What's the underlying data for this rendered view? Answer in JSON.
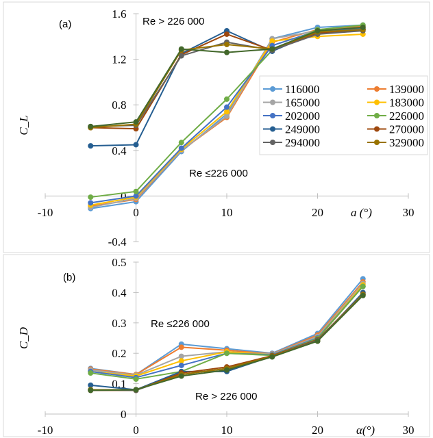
{
  "chart_data": [
    {
      "type": "line",
      "panel": "(a)",
      "xlabel": "a (°)",
      "ylabel": "C_L",
      "xlim": [
        -10,
        30
      ],
      "ylim": [
        -0.4,
        1.6
      ],
      "x_ticks": [
        -10,
        0,
        10,
        20,
        30
      ],
      "y_ticks": [
        -0.4,
        0,
        0.4,
        0.8,
        1.2,
        1.6
      ],
      "y_tick_labels": [
        "-0.4",
        "0",
        "0.4",
        "0.8",
        "1.2",
        "1.6"
      ],
      "annotations": [
        "Re > 226 000",
        "Re ≤226 000"
      ],
      "legend": "inside, right",
      "grid": false,
      "x": [
        -5,
        0,
        5,
        10,
        15,
        20,
        25
      ],
      "series": [
        {
          "name": "116000",
          "color": "#5b9bd5",
          "values": [
            -0.11,
            -0.05,
            0.39,
            0.72,
            1.38,
            1.48,
            1.5
          ]
        },
        {
          "name": "139000",
          "color": "#ed7d31",
          "values": [
            -0.09,
            -0.03,
            0.4,
            0.69,
            1.35,
            1.46,
            1.49
          ]
        },
        {
          "name": "165000",
          "color": "#a5a5a5",
          "values": [
            -0.1,
            -0.02,
            0.4,
            0.7,
            1.38,
            1.45,
            1.48
          ]
        },
        {
          "name": "183000",
          "color": "#ffc000",
          "values": [
            -0.08,
            -0.01,
            0.41,
            0.74,
            1.36,
            1.4,
            1.42
          ]
        },
        {
          "name": "202000",
          "color": "#4472c4",
          "values": [
            -0.06,
            0.0,
            0.42,
            0.78,
            1.32,
            1.45,
            1.47
          ]
        },
        {
          "name": "226000",
          "color": "#70ad47",
          "values": [
            -0.01,
            0.04,
            0.47,
            0.85,
            1.28,
            1.46,
            1.5
          ]
        },
        {
          "name": "249000",
          "color": "#255e91",
          "values": [
            0.44,
            0.45,
            1.25,
            1.45,
            1.27,
            1.44,
            1.46
          ]
        },
        {
          "name": "270000",
          "color": "#9e480e",
          "values": [
            0.6,
            0.59,
            1.24,
            1.42,
            1.28,
            1.43,
            1.46
          ]
        },
        {
          "name": "294000",
          "color": "#636363",
          "values": [
            0.61,
            0.62,
            1.23,
            1.35,
            1.28,
            1.42,
            1.45
          ]
        },
        {
          "name": "329000",
          "color": "#997300",
          "values": [
            0.6,
            0.63,
            1.28,
            1.33,
            1.29,
            1.44,
            1.46
          ]
        },
        {
          "name": "",
          "color": "#43682b",
          "values": [
            0.61,
            0.65,
            1.29,
            1.26,
            1.29,
            1.45,
            1.48
          ]
        }
      ]
    },
    {
      "type": "line",
      "panel": "(b)",
      "xlabel": "α(°)",
      "ylabel": "C_D",
      "xlim": [
        -10,
        30
      ],
      "ylim": [
        0,
        0.5
      ],
      "x_ticks": [
        -10,
        0,
        10,
        20,
        30
      ],
      "y_ticks": [
        0,
        0.1,
        0.2,
        0.3,
        0.4,
        0.5
      ],
      "y_tick_labels": [
        "0",
        "0.1",
        "0.2",
        "0.3",
        "0.4",
        "0.5"
      ],
      "annotations": [
        "Re ≤226 000",
        "Re > 226 000"
      ],
      "grid": false,
      "x": [
        -5,
        0,
        5,
        10,
        15,
        20,
        25
      ],
      "series": [
        {
          "name": "116000",
          "color": "#5b9bd5",
          "values": [
            0.15,
            0.13,
            0.23,
            0.215,
            0.2,
            0.265,
            0.445
          ]
        },
        {
          "name": "139000",
          "color": "#ed7d31",
          "values": [
            0.148,
            0.13,
            0.22,
            0.21,
            0.198,
            0.26,
            0.435
          ]
        },
        {
          "name": "165000",
          "color": "#a5a5a5",
          "values": [
            0.145,
            0.128,
            0.19,
            0.205,
            0.197,
            0.255,
            0.43
          ]
        },
        {
          "name": "183000",
          "color": "#ffc000",
          "values": [
            0.14,
            0.125,
            0.175,
            0.205,
            0.195,
            0.25,
            0.425
          ]
        },
        {
          "name": "202000",
          "color": "#4472c4",
          "values": [
            0.14,
            0.12,
            0.16,
            0.2,
            0.195,
            0.25,
            0.42
          ]
        },
        {
          "name": "226000",
          "color": "#70ad47",
          "values": [
            0.135,
            0.115,
            0.14,
            0.2,
            0.193,
            0.248,
            0.42
          ]
        },
        {
          "name": "249000",
          "color": "#255e91",
          "values": [
            0.095,
            0.08,
            0.14,
            0.14,
            0.19,
            0.24,
            0.4
          ]
        },
        {
          "name": "270000",
          "color": "#9e480e",
          "values": [
            0.078,
            0.078,
            0.135,
            0.155,
            0.192,
            0.245,
            0.395
          ]
        },
        {
          "name": "294000",
          "color": "#636363",
          "values": [
            0.08,
            0.078,
            0.13,
            0.15,
            0.19,
            0.243,
            0.395
          ]
        },
        {
          "name": "329000",
          "color": "#997300",
          "values": [
            0.08,
            0.08,
            0.13,
            0.15,
            0.19,
            0.24,
            0.393
          ]
        },
        {
          "name": "",
          "color": "#43682b",
          "values": [
            0.078,
            0.08,
            0.125,
            0.145,
            0.188,
            0.24,
            0.39
          ]
        }
      ]
    }
  ]
}
